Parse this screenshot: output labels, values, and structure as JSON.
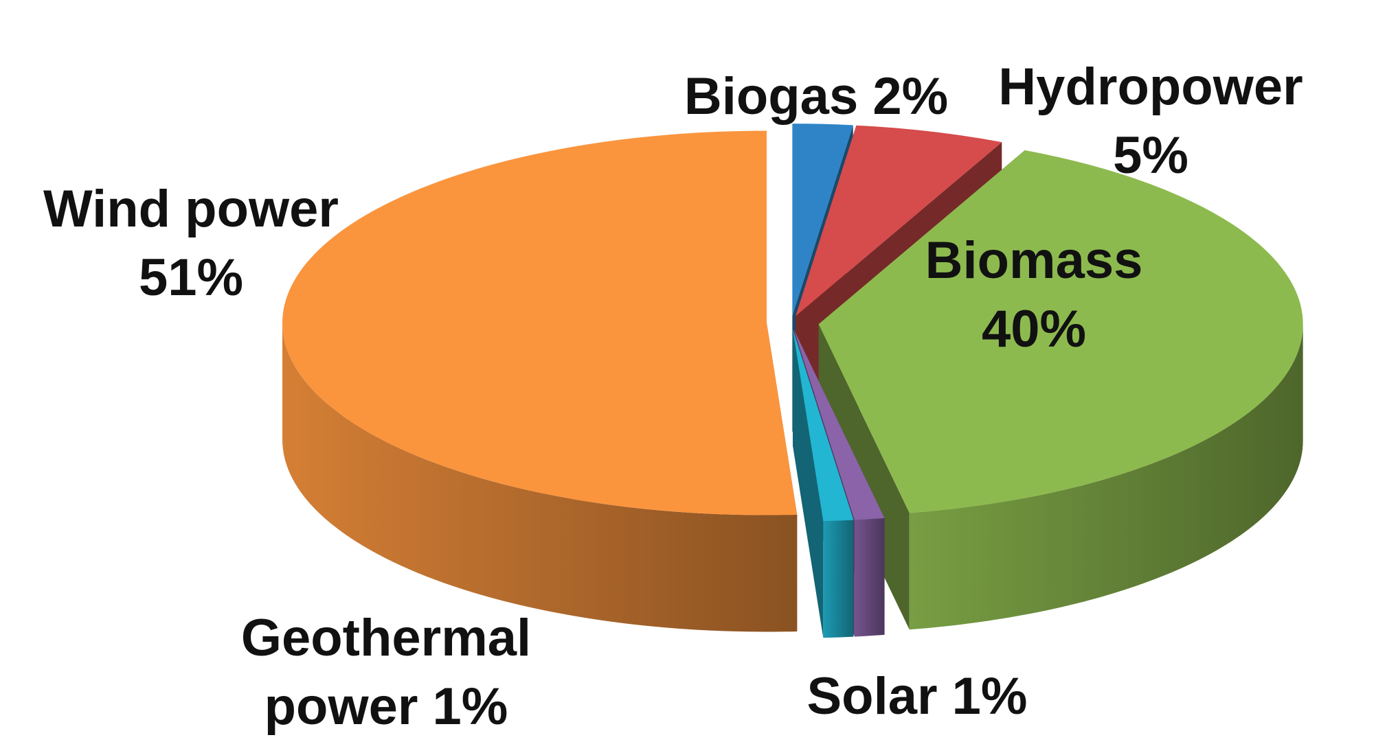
{
  "chart_data": {
    "type": "pie",
    "title": "",
    "style": "3d-exploded",
    "slices": [
      {
        "name": "Biogas",
        "value": 2,
        "label_lines": [
          "Biogas 2%"
        ],
        "color": "#2E84C6"
      },
      {
        "name": "Hydropower",
        "value": 5,
        "label_lines": [
          "Hydropower",
          "5%"
        ],
        "color": "#D64B4B"
      },
      {
        "name": "Biomass",
        "value": 40,
        "label_lines": [
          "Biomass",
          "40%"
        ],
        "color": "#8DBA4F"
      },
      {
        "name": "Solar",
        "value": 1,
        "label_lines": [
          "Solar 1%"
        ],
        "color": "#8B63A8"
      },
      {
        "name": "Geothermal power",
        "value": 1,
        "label_lines": [
          "Geothermal",
          "power 1%"
        ],
        "color": "#22B6D2"
      },
      {
        "name": "Wind power",
        "value": 51,
        "label_lines": [
          "Wind power",
          "51%"
        ],
        "color": "#FA953E"
      }
    ]
  }
}
